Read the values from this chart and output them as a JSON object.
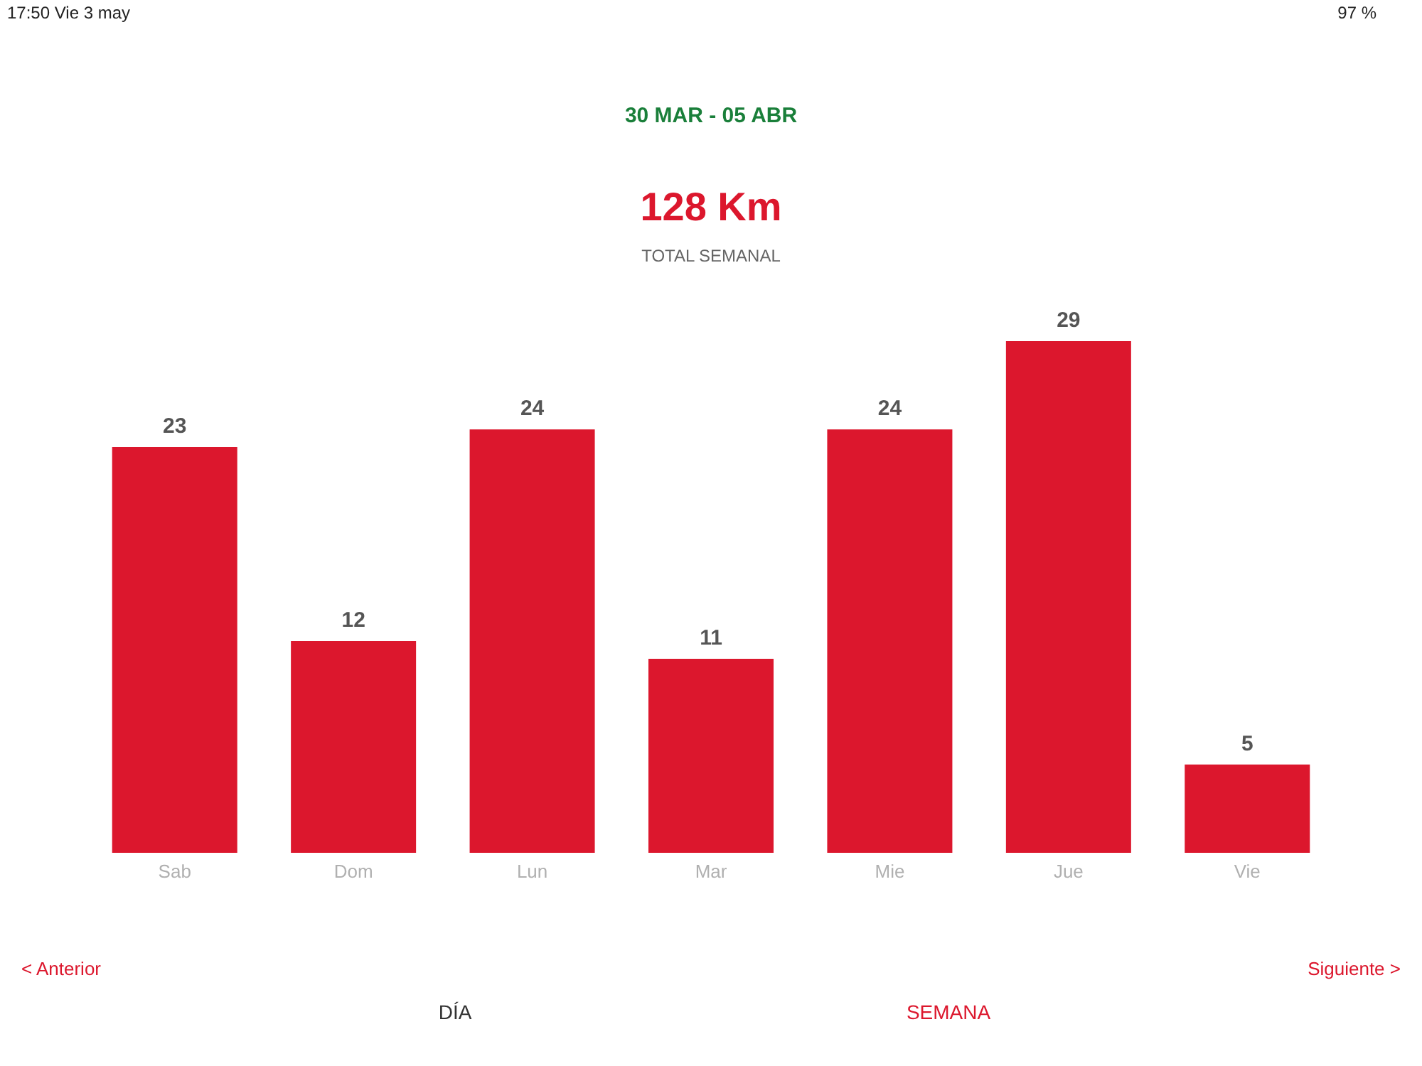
{
  "chart_data": {
    "type": "bar",
    "title": "30 MAR - 05 ABR",
    "subtitle": "128 Km",
    "categories": [
      "Sab",
      "Dom",
      "Lun",
      "Mar",
      "Mie",
      "Jue",
      "Vie"
    ],
    "values": [
      23,
      12,
      24,
      11,
      24,
      29,
      5
    ],
    "color": "#dc172d",
    "data_labels": true,
    "annotations": [
      "17:50   Vie 3 may",
      "97 %",
      "TOTAL SEMANAL",
      "< Anterior",
      "Siguiente >",
      "DÍA",
      "SEMANA"
    ]
  }
}
